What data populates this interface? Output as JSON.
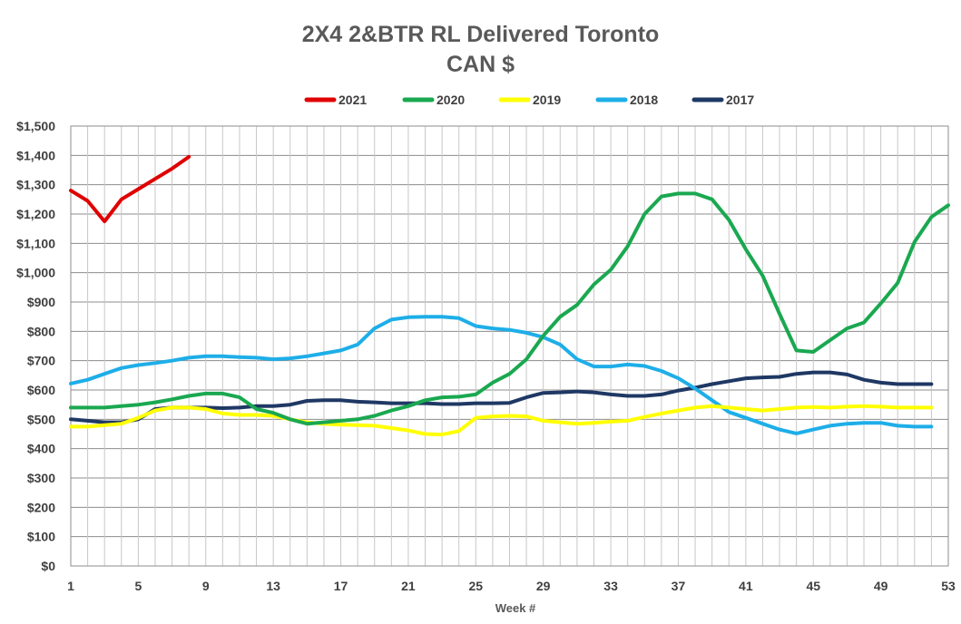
{
  "chart_data": {
    "type": "line",
    "title": "2X4 2&BTR RL Delivered Toronto",
    "subtitle": "CAN $",
    "xlabel": "Week #",
    "ylabel": "",
    "xlim": [
      1,
      53
    ],
    "ylim": [
      0,
      1500
    ],
    "y_ticks": [
      0,
      100,
      200,
      300,
      400,
      500,
      600,
      700,
      800,
      900,
      1000,
      1100,
      1200,
      1300,
      1400,
      1500
    ],
    "y_tick_labels": [
      "$0",
      "$100",
      "$200",
      "$300",
      "$400",
      "$500",
      "$600",
      "$700",
      "$800",
      "$900",
      "$1,000",
      "$1,100",
      "$1,200",
      "$1,300",
      "$1,400",
      "$1,500"
    ],
    "x_ticks": [
      1,
      5,
      9,
      13,
      17,
      21,
      25,
      29,
      33,
      37,
      41,
      45,
      49,
      53
    ],
    "grid": true,
    "legend_position": "top-center",
    "series": [
      {
        "name": "2021",
        "color": "#e00000",
        "x": [
          1,
          2,
          3,
          4,
          5,
          6,
          7,
          8
        ],
        "values": [
          1280,
          1245,
          1175,
          1250,
          1285,
          1320,
          1355,
          1395
        ]
      },
      {
        "name": "2020",
        "color": "#1aa850",
        "x": [
          1,
          2,
          3,
          4,
          5,
          6,
          7,
          8,
          9,
          10,
          11,
          12,
          13,
          14,
          15,
          16,
          17,
          18,
          19,
          20,
          21,
          22,
          23,
          24,
          25,
          26,
          27,
          28,
          29,
          30,
          31,
          32,
          33,
          34,
          35,
          36,
          37,
          38,
          39,
          40,
          41,
          42,
          43,
          44,
          45,
          46,
          47,
          48,
          49,
          50,
          51,
          52,
          53
        ],
        "values": [
          540,
          540,
          540,
          545,
          550,
          558,
          568,
          580,
          588,
          588,
          575,
          535,
          522,
          500,
          485,
          490,
          495,
          500,
          512,
          530,
          545,
          565,
          575,
          577,
          585,
          625,
          655,
          705,
          785,
          850,
          890,
          960,
          1010,
          1090,
          1200,
          1260,
          1270,
          1270,
          1250,
          1180,
          1080,
          990,
          860,
          735,
          730,
          770,
          810,
          830,
          895,
          965,
          1105,
          1190,
          1230
        ]
      },
      {
        "name": "2019",
        "color": "#ffff00",
        "x": [
          1,
          2,
          3,
          4,
          5,
          6,
          7,
          8,
          9,
          10,
          11,
          12,
          13,
          14,
          15,
          16,
          17,
          18,
          19,
          20,
          21,
          22,
          23,
          24,
          25,
          26,
          27,
          28,
          29,
          30,
          31,
          32,
          33,
          34,
          35,
          36,
          37,
          38,
          39,
          40,
          41,
          42,
          43,
          44,
          45,
          46,
          47,
          48,
          49,
          50,
          51,
          52
        ],
        "values": [
          475,
          475,
          480,
          485,
          505,
          530,
          540,
          540,
          535,
          520,
          515,
          515,
          512,
          500,
          490,
          485,
          482,
          480,
          478,
          470,
          462,
          450,
          448,
          460,
          505,
          510,
          512,
          510,
          495,
          490,
          485,
          488,
          492,
          495,
          508,
          520,
          530,
          540,
          545,
          540,
          535,
          530,
          535,
          540,
          542,
          540,
          543,
          545,
          543,
          540,
          540,
          540
        ]
      },
      {
        "name": "2018",
        "color": "#1eaee8",
        "x": [
          1,
          2,
          3,
          4,
          5,
          6,
          7,
          8,
          9,
          10,
          11,
          12,
          13,
          14,
          15,
          16,
          17,
          18,
          19,
          20,
          21,
          22,
          23,
          24,
          25,
          26,
          27,
          28,
          29,
          30,
          31,
          32,
          33,
          34,
          35,
          36,
          37,
          38,
          39,
          40,
          41,
          42,
          43,
          44,
          45,
          46,
          47,
          48,
          49,
          50,
          51,
          52
        ],
        "values": [
          622,
          635,
          655,
          675,
          685,
          692,
          700,
          710,
          715,
          715,
          712,
          710,
          705,
          708,
          715,
          725,
          735,
          755,
          810,
          840,
          848,
          850,
          850,
          845,
          818,
          810,
          805,
          795,
          780,
          755,
          705,
          680,
          680,
          687,
          682,
          665,
          640,
          605,
          565,
          525,
          505,
          485,
          465,
          452,
          465,
          478,
          485,
          488,
          488,
          478,
          475,
          475
        ]
      },
      {
        "name": "2017",
        "color": "#1f3864",
        "x": [
          1,
          2,
          3,
          4,
          5,
          6,
          7,
          8,
          9,
          10,
          11,
          12,
          13,
          14,
          15,
          16,
          17,
          18,
          19,
          20,
          21,
          22,
          23,
          24,
          25,
          26,
          27,
          28,
          29,
          30,
          31,
          32,
          33,
          34,
          35,
          36,
          37,
          38,
          39,
          40,
          41,
          42,
          43,
          44,
          45,
          46,
          47,
          48,
          49,
          50,
          51,
          52
        ],
        "values": [
          500,
          495,
          490,
          490,
          500,
          535,
          540,
          540,
          540,
          538,
          540,
          545,
          545,
          550,
          563,
          565,
          565,
          560,
          558,
          555,
          555,
          555,
          552,
          552,
          555,
          555,
          556,
          575,
          590,
          592,
          595,
          592,
          585,
          580,
          580,
          585,
          598,
          608,
          620,
          630,
          640,
          643,
          645,
          655,
          660,
          660,
          653,
          635,
          625,
          620,
          620,
          620
        ]
      }
    ]
  }
}
